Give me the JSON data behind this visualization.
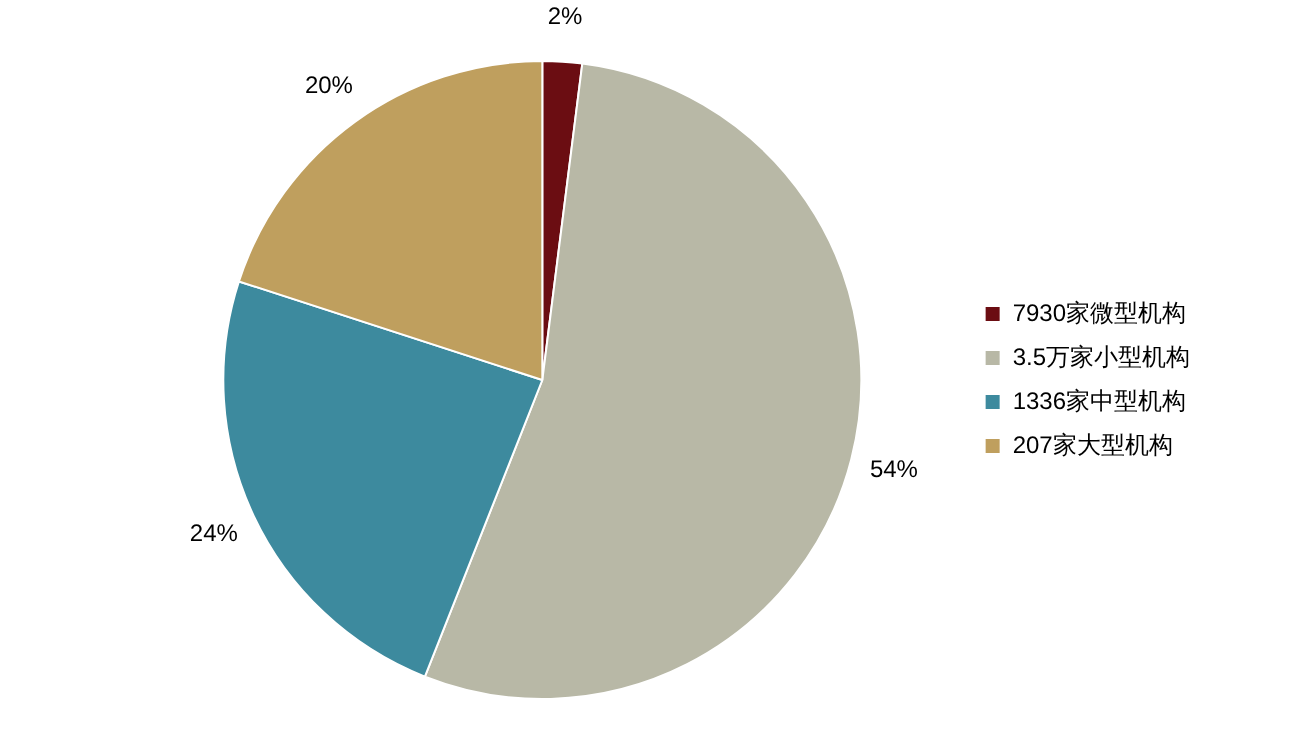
{
  "chart_data": {
    "type": "pie",
    "categories": [
      "7930家微型机构",
      "3.5万家小型机构",
      "1336家中型机构",
      "207家大型机构"
    ],
    "values": [
      2,
      54,
      24,
      20
    ],
    "colors": [
      "#6b0d12",
      "#b8b8a6",
      "#3d8a9e",
      "#bf9f5e"
    ],
    "value_labels": [
      "2%",
      "54%",
      "24%",
      "20%"
    ],
    "legend": "right"
  }
}
